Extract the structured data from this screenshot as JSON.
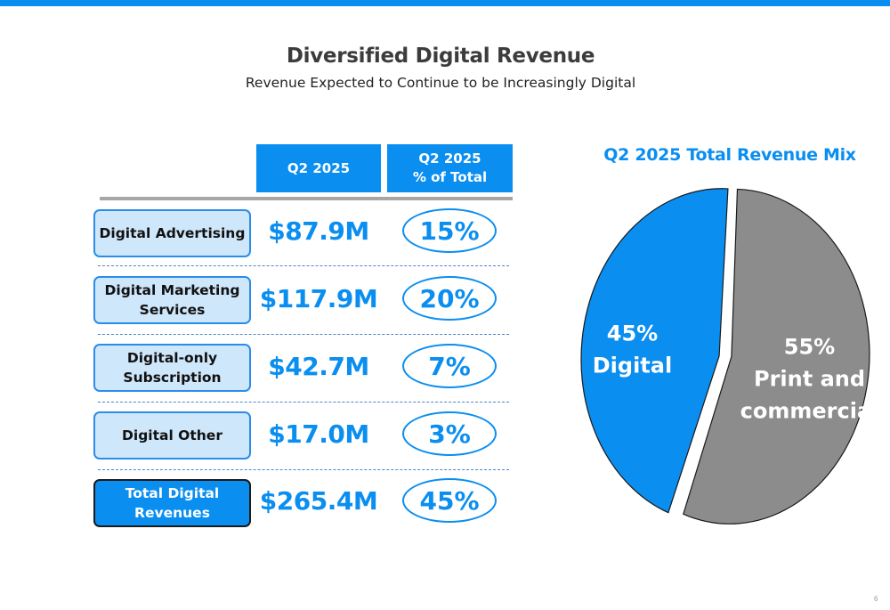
{
  "title": "Diversified Digital Revenue",
  "subtitle": "Revenue Expected to Continue to be Increasingly Digital",
  "table": {
    "col_period": "Q2 2025",
    "col_pct_line1": "Q2 2025",
    "col_pct_line2": "% of Total",
    "rows": [
      {
        "label_line1": "Digital Advertising",
        "label_line2": "",
        "value": "$87.9M",
        "pct": "15%"
      },
      {
        "label_line1": "Digital Marketing",
        "label_line2": "Services",
        "value": "$117.9M",
        "pct": "20%"
      },
      {
        "label_line1": "Digital-only",
        "label_line2": "Subscription",
        "value": "$42.7M",
        "pct": "7%"
      },
      {
        "label_line1": "Digital Other",
        "label_line2": "",
        "value": "$17.0M",
        "pct": "3%"
      },
      {
        "label_line1": "Total Digital",
        "label_line2": "Revenues",
        "value": "$265.4M",
        "pct": "45%"
      }
    ]
  },
  "chart_data": {
    "type": "pie",
    "title": "Q2 2025 Total Revenue Mix",
    "slices": [
      {
        "label_pct": "45%",
        "label_line1": "Digital",
        "label_line2": "",
        "value": 45,
        "color": "#0a8ef0"
      },
      {
        "label_pct": "55%",
        "label_line1": "Print and",
        "label_line2": "commercial",
        "value": 55,
        "color": "#8c8c8c"
      }
    ]
  },
  "page_number": "6",
  "colors": {
    "accent": "#0a8ef0",
    "gray": "#8c8c8c",
    "label_fill": "#cfe7fb"
  }
}
